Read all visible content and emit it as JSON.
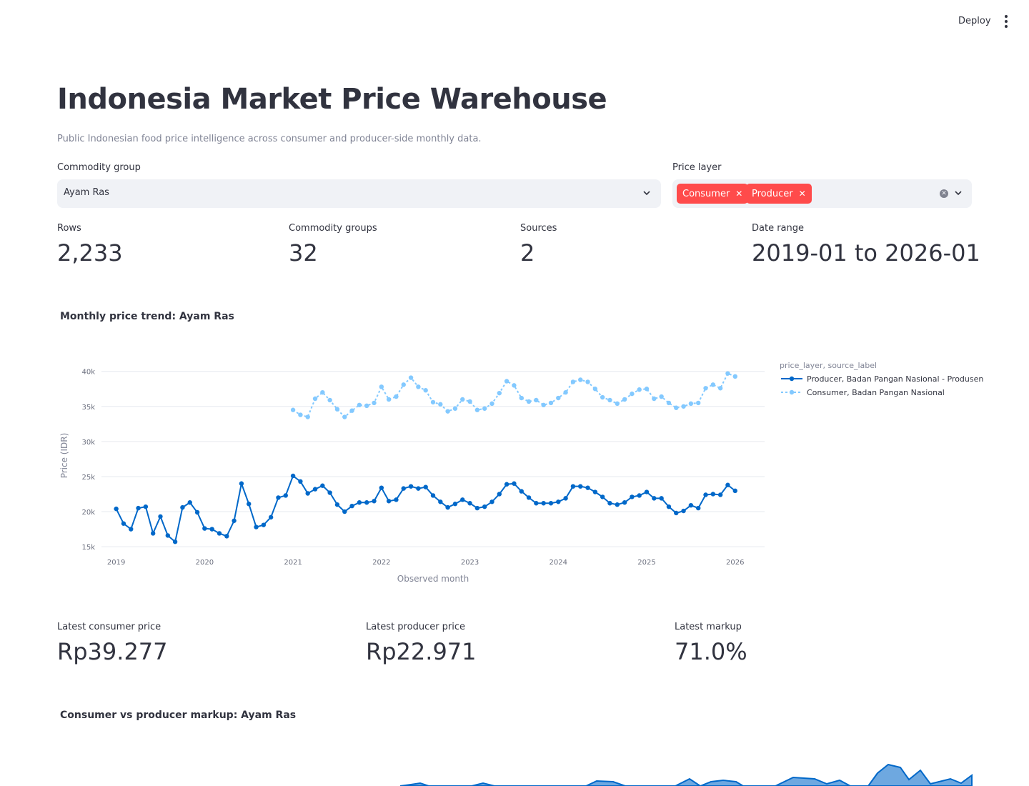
{
  "header": {
    "deploy_label": "Deploy",
    "menu_icon": "kebab-menu-icon"
  },
  "page": {
    "title": "Indonesia Market Price Warehouse",
    "subtitle": "Public Indonesian food price intelligence across consumer and producer-side monthly data."
  },
  "filters": {
    "commodity_group": {
      "label": "Commodity group",
      "value": "Ayam Ras"
    },
    "price_layer": {
      "label": "Price layer",
      "tags": [
        "Consumer",
        "Producer"
      ]
    }
  },
  "metrics": [
    {
      "label": "Rows",
      "value": "2,233"
    },
    {
      "label": "Commodity groups",
      "value": "32"
    },
    {
      "label": "Sources",
      "value": "2"
    },
    {
      "label": "Date range",
      "value": "2019-01 to 2026-01"
    }
  ],
  "price_metrics": [
    {
      "label": "Latest consumer price",
      "value": "Rp39.277"
    },
    {
      "label": "Latest producer price",
      "value": "Rp22.971"
    },
    {
      "label": "Latest markup",
      "value": "71.0%"
    }
  ],
  "colors": {
    "accent": "#ff4b4b",
    "producer": "#0068c9",
    "consumer": "#83c9ff"
  },
  "chart_data": [
    {
      "type": "line",
      "title": "Monthly price trend: Ayam Ras",
      "xlabel": "Observed month",
      "ylabel": "Price (IDR)",
      "xlim": [
        "2018-11",
        "2026-05"
      ],
      "ylim": [
        14500,
        41500
      ],
      "x_ticks": [
        "2019",
        "2020",
        "2021",
        "2022",
        "2023",
        "2024",
        "2025",
        "2026"
      ],
      "y_ticks": [
        15000,
        20000,
        25000,
        30000,
        35000,
        40000
      ],
      "y_tick_labels": [
        "15k",
        "20k",
        "25k",
        "30k",
        "35k",
        "40k"
      ],
      "legend": {
        "title": "price_layer, source_label",
        "placement": "top-right-outside"
      },
      "grid": true,
      "series": [
        {
          "name": "Producer, Badan Pangan Nasional - Produsen",
          "style": "solid",
          "start": "2019-01",
          "values": [
            20400,
            18300,
            17500,
            20500,
            20700,
            16900,
            19300,
            16600,
            15700,
            20600,
            21300,
            19900,
            17600,
            17500,
            16900,
            16500,
            18700,
            24000,
            21100,
            17800,
            18100,
            19200,
            22000,
            22300,
            25100,
            24300,
            22600,
            23200,
            23700,
            22700,
            21000,
            20000,
            20800,
            21300,
            21300,
            21500,
            23400,
            21500,
            21700,
            23300,
            23600,
            23300,
            23500,
            22300,
            21400,
            20600,
            21100,
            21700,
            21200,
            20500,
            20700,
            21400,
            22500,
            23900,
            24000,
            22900,
            22000,
            21200,
            21200,
            21200,
            21400,
            21900,
            23600,
            23600,
            23400,
            22800,
            22100,
            21200,
            21000,
            21300,
            22100,
            22300,
            22800,
            21900,
            21900,
            20700,
            19800,
            20100,
            20900,
            20500,
            22400,
            22500,
            22400,
            23800,
            22971
          ]
        },
        {
          "name": "Consumer, Badan Pangan Nasional",
          "style": "dotted",
          "start": "2021-01",
          "values": [
            34500,
            33800,
            33500,
            36100,
            37000,
            35900,
            34600,
            33500,
            34400,
            35200,
            35100,
            35500,
            37800,
            36000,
            36400,
            38100,
            39100,
            37800,
            37300,
            35600,
            35300,
            34300,
            34700,
            36000,
            35700,
            34500,
            34700,
            35400,
            36900,
            38600,
            38000,
            36200,
            35700,
            35900,
            35200,
            35500,
            36200,
            37000,
            38500,
            38800,
            38500,
            37500,
            36300,
            35900,
            35400,
            36000,
            36800,
            37400,
            37500,
            36100,
            36400,
            35500,
            34800,
            35000,
            35400,
            35500,
            37600,
            38100,
            37600,
            39700,
            39277
          ]
        }
      ]
    },
    {
      "type": "area",
      "title": "Consumer vs producer markup: Ayam Ras"
    }
  ]
}
